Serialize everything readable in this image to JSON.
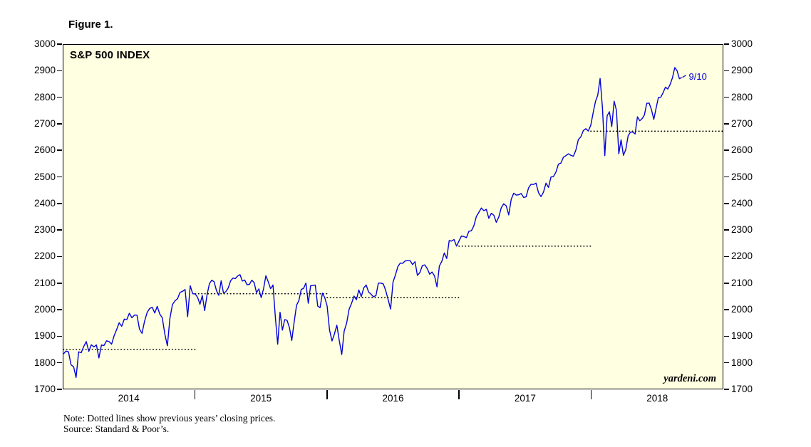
{
  "figure_label": "Figure 1.",
  "colors": {
    "line": "#0000DC",
    "dotted": "#000000",
    "plot_bg": "#FFFFE2",
    "annotation": "#0000DC"
  },
  "notes": {
    "note": "Note: Dotted lines show previous years’ closing prices.",
    "source": "Source: Standard & Poor’s."
  },
  "chart_data": {
    "type": "line",
    "title": "S&P 500 INDEX",
    "watermark": "yardeni.com",
    "ylim": [
      1700,
      3000
    ],
    "ytick_step": 100,
    "xlim": [
      2014,
      2019
    ],
    "grid": false,
    "x_year_ticks": [
      2015,
      2016,
      2017,
      2018
    ],
    "x_labels": [
      {
        "text": "2014",
        "x": 2014.5
      },
      {
        "text": "2015",
        "x": 2015.5
      },
      {
        "text": "2016",
        "x": 2016.5
      },
      {
        "text": "2017",
        "x": 2017.5
      },
      {
        "text": "2018",
        "x": 2018.5
      }
    ],
    "annotation": {
      "text": "9/10"
    },
    "reference_lines": [
      {
        "value": 1848.36,
        "from": 2014,
        "to": 2015
      },
      {
        "value": 2058.9,
        "from": 2015,
        "to": 2016
      },
      {
        "value": 2043.94,
        "from": 2016,
        "to": 2017
      },
      {
        "value": 2238.83,
        "from": 2017,
        "to": 2018
      },
      {
        "value": 2673.61,
        "from": 2018,
        "to": 2019
      }
    ],
    "series": [
      {
        "name": "S&P 500",
        "segments": [
          {
            "year": 2014,
            "values": [
              1831,
              1842,
              1839,
              1790,
              1783,
              1742,
              1839,
              1836,
              1859,
              1878,
              1841,
              1866,
              1858,
              1865,
              1816,
              1865,
              1863,
              1881,
              1878,
              1868,
              1900,
              1924,
              1949,
              1936,
              1963,
              1961,
              1985,
              1968,
              1978,
              1978,
              1925,
              1909,
              1955,
              1988,
              2003,
              2008,
              1986,
              2011,
              1982,
              1968,
              1906,
              1862,
              1965,
              2018,
              2032,
              2040,
              2064,
              2068,
              2075,
              1972,
              2089,
              2059
            ]
          },
          {
            "year": 2015,
            "values": [
              2058,
              2045,
              2019,
              2052,
              1995,
              2055,
              2097,
              2110,
              2104,
              2071,
              2053,
              2108,
              2061,
              2067,
              2081,
              2108,
              2118,
              2116,
              2126,
              2131,
              2107,
              2111,
              2093,
              2094,
              2110,
              2101,
              2063,
              2077,
              2044,
              2077,
              2127,
              2104,
              2078,
              2092,
              1971,
              1868,
              1989,
              1921,
              1961,
              1958,
              1931,
              1882,
              1951,
              2015,
              2033,
              2075,
              2079,
              2099,
              2023,
              2089,
              2090,
              2092,
              2012,
              2006,
              2061,
              2044
            ]
          },
          {
            "year": 2016,
            "values": [
              2013,
              1922,
              1880,
              1907,
              1940,
              1880,
              1829,
              1918,
              1948,
              2000,
              2022,
              2050,
              2036,
              2073,
              2048,
              2081,
              2092,
              2065,
              2057,
              2047,
              2052,
              2099,
              2099,
              2096,
              2071,
              2037,
              2001,
              2103,
              2130,
              2162,
              2175,
              2174,
              2183,
              2184,
              2184,
              2169,
              2180,
              2128,
              2139,
              2165,
              2168,
              2154,
              2133,
              2141,
              2126,
              2085,
              2164,
              2182,
              2213,
              2192,
              2260,
              2258,
              2264,
              2239
            ]
          },
          {
            "year": 2017,
            "values": [
              2258,
              2277,
              2275,
              2271,
              2295,
              2297,
              2316,
              2351,
              2367,
              2383,
              2373,
              2378,
              2344,
              2363,
              2356,
              2329,
              2349,
              2384,
              2399,
              2391,
              2357,
              2416,
              2439,
              2432,
              2433,
              2438,
              2423,
              2425,
              2459,
              2473,
              2472,
              2477,
              2441,
              2426,
              2443,
              2477,
              2461,
              2500,
              2502,
              2519,
              2549,
              2553,
              2575,
              2581,
              2588,
              2582,
              2579,
              2602,
              2642,
              2652,
              2676,
              2683,
              2674
            ]
          },
          {
            "year": 2018,
            "span": 0.69,
            "values": [
              2696,
              2743,
              2786,
              2810,
              2873,
              2762,
              2581,
              2732,
              2747,
              2691,
              2787,
              2752,
              2588,
              2641,
              2582,
              2604,
              2656,
              2670,
              2670,
              2663,
              2728,
              2713,
              2721,
              2735,
              2779,
              2780,
              2755,
              2718,
              2760,
              2801,
              2802,
              2819,
              2840,
              2833,
              2850,
              2875,
              2914,
              2902,
              2872,
              2877
            ]
          }
        ]
      }
    ]
  }
}
